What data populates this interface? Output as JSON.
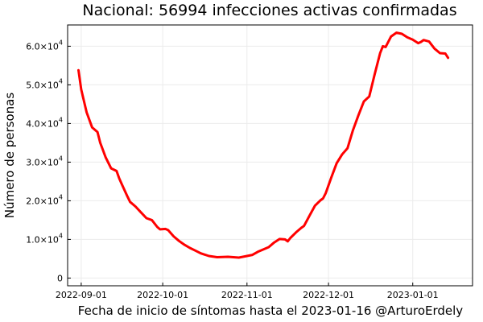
{
  "chart_data": {
    "type": "line",
    "title": "Nacional: 56994 infecciones activas confirmadas",
    "xlabel": "Fecha de inicio de síntomas hasta el 2023-01-16 @ArturoErdely",
    "ylabel": "Número de personas",
    "xlim": [
      "2022-08-27",
      "2023-01-23"
    ],
    "ylim": [
      -2000,
      65500
    ],
    "grid": true,
    "legend": "none",
    "line_color": "#ff0000",
    "x_ticks": [
      {
        "value": "2022-09-01",
        "label": "2022-09-01"
      },
      {
        "value": "2022-10-01",
        "label": "2022-10-01"
      },
      {
        "value": "2022-11-01",
        "label": "2022-11-01"
      },
      {
        "value": "2022-12-01",
        "label": "2022-12-01"
      },
      {
        "value": "2023-01-01",
        "label": "2023-01-01"
      }
    ],
    "y_ticks": [
      {
        "value": 0,
        "mantissa": "0",
        "exponent": ""
      },
      {
        "value": 10000,
        "mantissa": "1.0×10",
        "exponent": "4"
      },
      {
        "value": 20000,
        "mantissa": "2.0×10",
        "exponent": "4"
      },
      {
        "value": 30000,
        "mantissa": "3.0×10",
        "exponent": "4"
      },
      {
        "value": 40000,
        "mantissa": "4.0×10",
        "exponent": "4"
      },
      {
        "value": 50000,
        "mantissa": "5.0×10",
        "exponent": "4"
      },
      {
        "value": 60000,
        "mantissa": "6.0×10",
        "exponent": "4"
      }
    ],
    "series": [
      {
        "x": [
          "2022-08-31",
          "2022-09-01",
          "2022-09-03",
          "2022-09-05",
          "2022-09-07",
          "2022-09-08",
          "2022-09-10",
          "2022-09-12",
          "2022-09-14",
          "2022-09-15",
          "2022-09-16",
          "2022-09-18",
          "2022-09-19",
          "2022-09-21",
          "2022-09-23",
          "2022-09-25",
          "2022-09-27",
          "2022-09-29",
          "2022-09-30",
          "2022-10-02",
          "2022-10-03",
          "2022-10-05",
          "2022-10-07",
          "2022-10-09",
          "2022-10-11",
          "2022-10-13",
          "2022-10-15",
          "2022-10-18",
          "2022-10-21",
          "2022-10-25",
          "2022-10-29",
          "2022-11-01",
          "2022-11-03",
          "2022-11-05",
          "2022-11-07",
          "2022-11-09",
          "2022-11-11",
          "2022-11-13",
          "2022-11-15",
          "2022-11-16",
          "2022-11-17",
          "2022-11-19",
          "2022-11-21",
          "2022-11-22",
          "2022-11-24",
          "2022-11-26",
          "2022-11-28",
          "2022-11-29",
          "2022-11-30",
          "2022-12-02",
          "2022-12-04",
          "2022-12-06",
          "2022-12-08",
          "2022-12-10",
          "2022-12-12",
          "2022-12-14",
          "2022-12-16",
          "2022-12-18",
          "2022-12-20",
          "2022-12-21",
          "2022-12-22",
          "2022-12-24",
          "2022-12-26",
          "2022-12-28",
          "2022-12-30",
          "2023-01-01",
          "2023-01-03",
          "2023-01-04",
          "2023-01-05",
          "2023-01-07",
          "2023-01-09",
          "2023-01-11",
          "2023-01-13",
          "2023-01-14"
        ],
        "y": [
          53800,
          48800,
          42900,
          39000,
          37800,
          35000,
          31200,
          28400,
          27700,
          25800,
          24200,
          21100,
          19700,
          18500,
          17000,
          15500,
          15000,
          13200,
          12600,
          12700,
          12400,
          10800,
          9600,
          8600,
          7800,
          7100,
          6400,
          5700,
          5400,
          5500,
          5300,
          5700,
          6000,
          6800,
          7400,
          8000,
          9200,
          10100,
          10000,
          9500,
          10400,
          11800,
          13000,
          13500,
          16100,
          18700,
          20100,
          20600,
          22000,
          26000,
          29700,
          32000,
          33600,
          38300,
          42100,
          45700,
          47000,
          52800,
          58200,
          60000,
          59800,
          62500,
          63500,
          63200,
          62300,
          61700,
          60800,
          61100,
          61600,
          61200,
          59400,
          58200,
          58100,
          57000
        ]
      }
    ]
  }
}
